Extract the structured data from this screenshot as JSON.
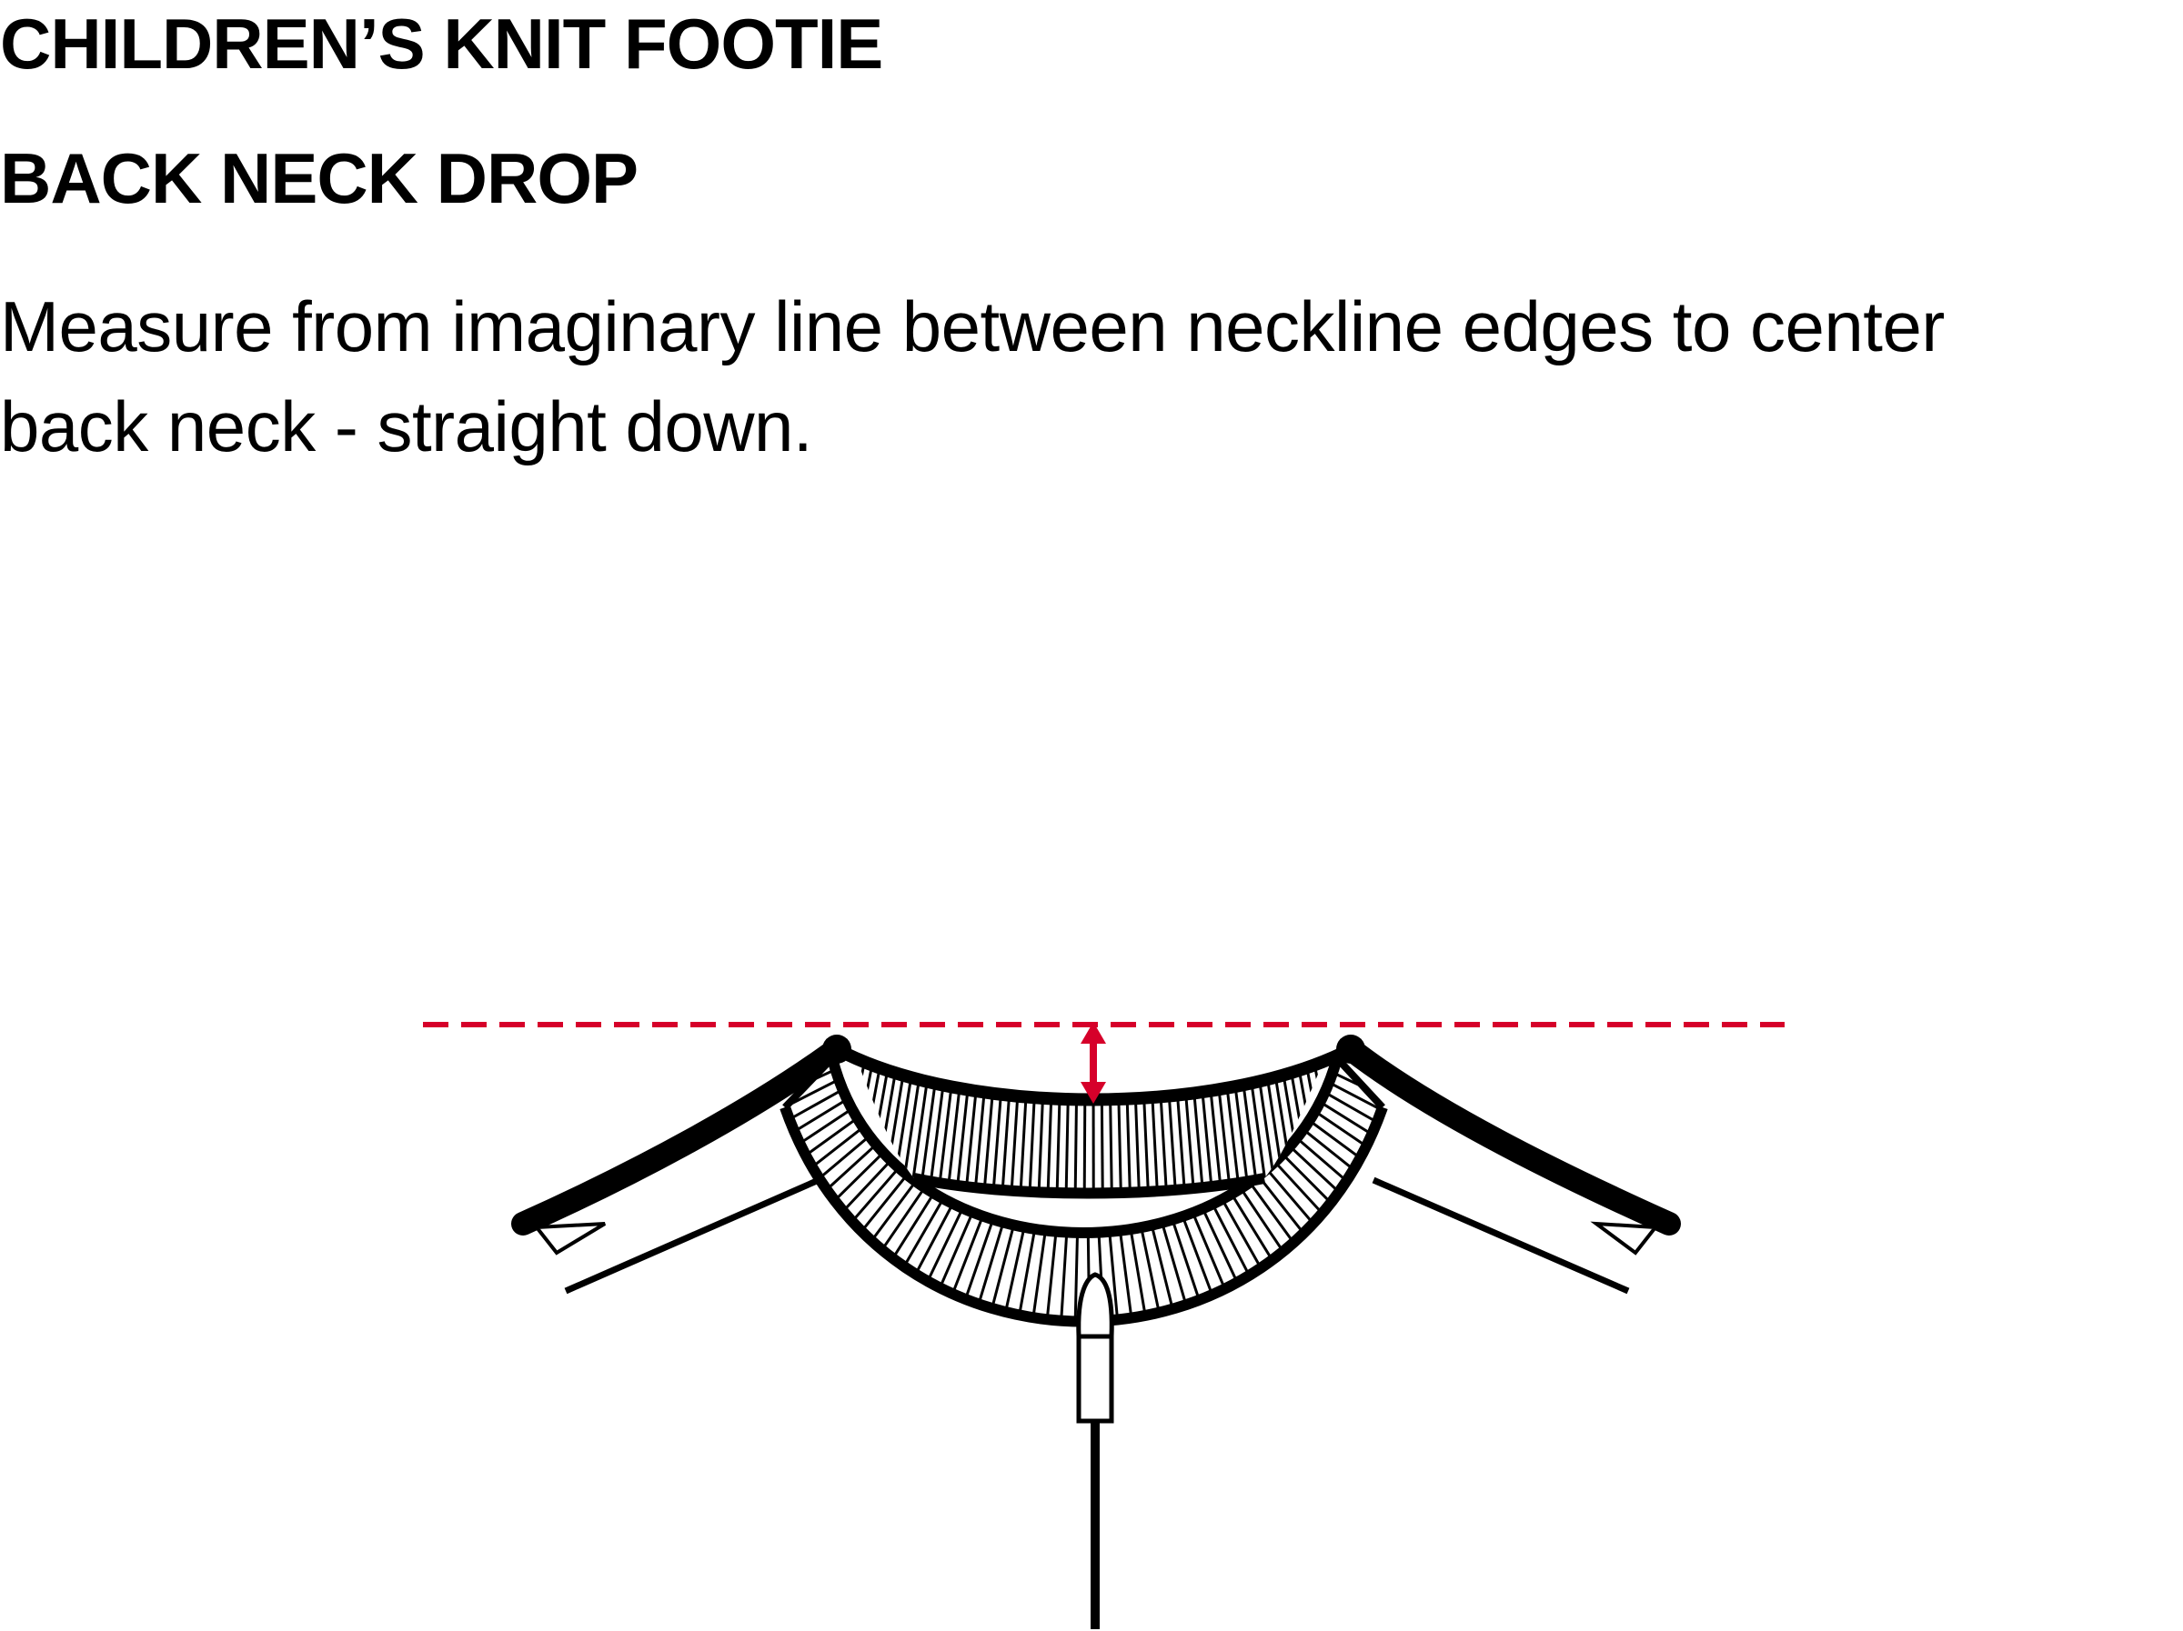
{
  "header": {
    "title": "CHILDREN’S KNIT FOOTIE",
    "subtitle": "BACK NECK DROP",
    "instructions": "Measure from imaginary line between neckline edges to center back neck - straight down."
  },
  "diagram": {
    "colors": {
      "measure_line": "#d6002a",
      "outline": "#000000",
      "fill": "#ffffff"
    },
    "icons": {
      "reference_line": "dashed-line",
      "measurement": "double-arrow-icon",
      "garment": "neckline-illustration",
      "hanger": "hanger-tag"
    }
  }
}
